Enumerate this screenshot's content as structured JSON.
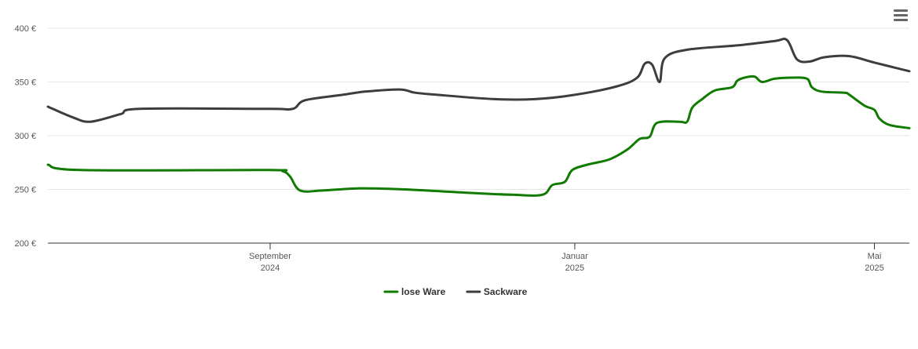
{
  "chart_data": {
    "type": "line",
    "title": "",
    "xlabel": "",
    "ylabel": "",
    "ylim": [
      200,
      400
    ],
    "y_ticks": [
      {
        "value": 200,
        "label": "200 €"
      },
      {
        "value": 250,
        "label": "250 €"
      },
      {
        "value": 300,
        "label": "300 €"
      },
      {
        "value": 350,
        "label": "350 €"
      },
      {
        "value": 400,
        "label": "400 €"
      }
    ],
    "xlim": [
      "2024-06-04",
      "2025-05-15"
    ],
    "x_ticks": [
      {
        "date": "2024-09-01",
        "line1": "September",
        "line2": "2024"
      },
      {
        "date": "2025-01-01",
        "line1": "Januar",
        "line2": "2025"
      },
      {
        "date": "2025-05-01",
        "line1": "Mai",
        "line2": "2025"
      }
    ],
    "grid": true,
    "legend_position": "bottom-center",
    "series": [
      {
        "name": "lose Ware",
        "color": "#117a00",
        "points": [
          [
            "2024-06-04",
            273
          ],
          [
            "2024-06-17",
            268
          ],
          [
            "2024-08-31",
            268
          ],
          [
            "2024-09-06",
            267
          ],
          [
            "2024-09-09",
            262
          ],
          [
            "2024-09-13",
            249
          ],
          [
            "2024-09-22",
            249
          ],
          [
            "2024-10-07",
            251
          ],
          [
            "2024-10-25",
            250
          ],
          [
            "2024-11-18",
            247
          ],
          [
            "2024-12-07",
            245
          ],
          [
            "2024-12-19",
            245
          ],
          [
            "2024-12-23",
            254
          ],
          [
            "2024-12-28",
            257
          ],
          [
            "2024-12-31",
            268
          ],
          [
            "2025-01-06",
            273
          ],
          [
            "2025-01-15",
            278
          ],
          [
            "2025-01-22",
            287
          ],
          [
            "2025-01-27",
            297
          ],
          [
            "2025-01-31",
            299
          ],
          [
            "2025-02-03",
            312
          ],
          [
            "2025-02-12",
            313
          ],
          [
            "2025-02-15",
            313
          ],
          [
            "2025-02-17",
            326
          ],
          [
            "2025-02-21",
            334
          ],
          [
            "2025-02-26",
            342
          ],
          [
            "2025-03-05",
            345
          ],
          [
            "2025-03-07",
            351
          ],
          [
            "2025-03-10",
            354
          ],
          [
            "2025-03-14",
            355
          ],
          [
            "2025-03-17",
            350
          ],
          [
            "2025-03-22",
            353
          ],
          [
            "2025-03-29",
            354
          ],
          [
            "2025-04-04",
            353
          ],
          [
            "2025-04-06",
            345
          ],
          [
            "2025-04-10",
            341
          ],
          [
            "2025-04-19",
            340
          ],
          [
            "2025-04-21",
            338
          ],
          [
            "2025-04-27",
            328
          ],
          [
            "2025-05-01",
            324
          ],
          [
            "2025-05-03",
            316
          ],
          [
            "2025-05-07",
            310
          ],
          [
            "2025-05-15",
            307
          ]
        ]
      },
      {
        "name": "Sackware",
        "color": "#3d3d3d",
        "points": [
          [
            "2024-06-04",
            327
          ],
          [
            "2024-06-14",
            317
          ],
          [
            "2024-06-21",
            313
          ],
          [
            "2024-07-03",
            320
          ],
          [
            "2024-07-11",
            325
          ],
          [
            "2024-08-31",
            325
          ],
          [
            "2024-09-10",
            325
          ],
          [
            "2024-09-15",
            333
          ],
          [
            "2024-09-30",
            338
          ],
          [
            "2024-10-09",
            341
          ],
          [
            "2024-10-23",
            343
          ],
          [
            "2024-10-29",
            340
          ],
          [
            "2024-11-07",
            338
          ],
          [
            "2024-11-30",
            334
          ],
          [
            "2024-12-16",
            334
          ],
          [
            "2025-01-01",
            338
          ],
          [
            "2025-01-18",
            346
          ],
          [
            "2025-01-26",
            354
          ],
          [
            "2025-01-29",
            367
          ],
          [
            "2025-02-01",
            366
          ],
          [
            "2025-02-04",
            350
          ],
          [
            "2025-02-06",
            372
          ],
          [
            "2025-02-15",
            380
          ],
          [
            "2025-03-07",
            384
          ],
          [
            "2025-03-22",
            388
          ],
          [
            "2025-03-27",
            389
          ],
          [
            "2025-03-31",
            371
          ],
          [
            "2025-04-05",
            369
          ],
          [
            "2025-04-11",
            373
          ],
          [
            "2025-04-21",
            374
          ],
          [
            "2025-05-01",
            368
          ],
          [
            "2025-05-15",
            360
          ]
        ]
      }
    ]
  },
  "menu": {
    "icon": "hamburger-menu-icon"
  }
}
